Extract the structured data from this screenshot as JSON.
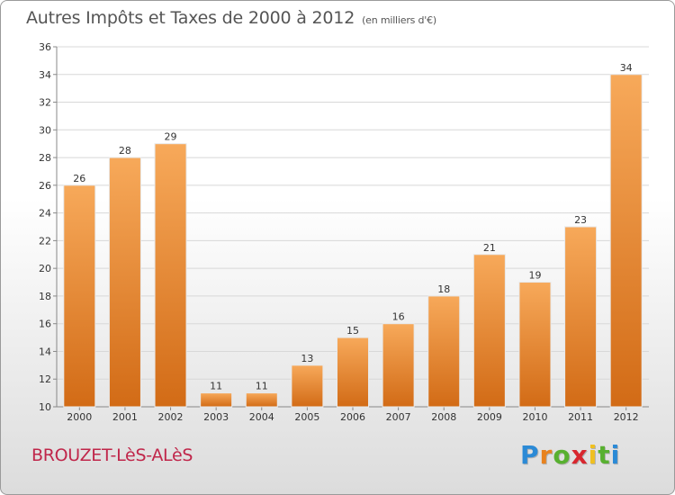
{
  "title": "Autres Impôts et Taxes de 2000 à 2012",
  "title_unit": "(en milliers d'€)",
  "place": "BROUZET-LèS-ALèS",
  "brand": {
    "letters": [
      "P",
      "r",
      "o",
      "x",
      "i",
      "t",
      "i"
    ],
    "colors": [
      "#2b8ad6",
      "#e8821e",
      "#58b030",
      "#d8262e",
      "#f0c020",
      "#58b030",
      "#2b8ad6"
    ]
  },
  "colors": {
    "bar_light": "#f7a95a",
    "bar_dark": "#d26b16",
    "grid": "#d8d8d8"
  },
  "chart_data": {
    "type": "bar",
    "categories": [
      "2000",
      "2001",
      "2002",
      "2003",
      "2004",
      "2005",
      "2006",
      "2007",
      "2008",
      "2009",
      "2010",
      "2011",
      "2012"
    ],
    "values": [
      26,
      28,
      29,
      11,
      11,
      13,
      15,
      16,
      18,
      21,
      19,
      23,
      34
    ],
    "yticks": [
      "10",
      "12",
      "14",
      "16",
      "18",
      "20",
      "22",
      "24",
      "26",
      "28",
      "30",
      "32",
      "34",
      "36"
    ],
    "ylim": [
      10,
      36
    ],
    "grid": true
  }
}
